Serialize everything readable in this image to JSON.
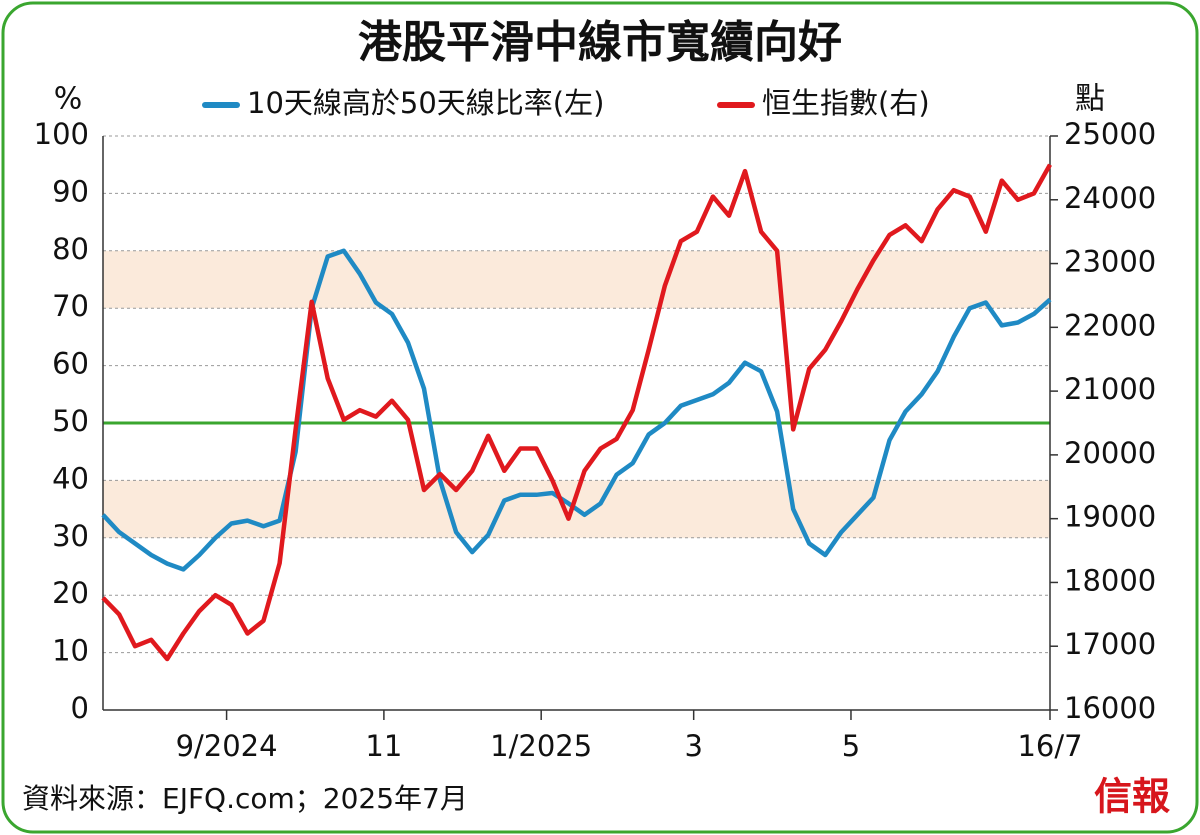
{
  "chart_data": {
    "type": "line",
    "title": "港股平滑中線市寬續向好",
    "y_label": "%",
    "y2_label": "點",
    "source": "資料來源：EJFQ.com；2025年7月",
    "logo": "信報",
    "x": [
      0,
      1,
      2,
      3,
      4,
      5,
      6,
      7,
      8,
      9,
      10,
      11,
      12,
      13,
      14,
      15,
      16,
      17,
      18,
      19,
      20,
      21,
      22,
      23,
      24,
      25,
      26,
      27,
      28,
      29,
      30,
      31,
      32,
      33,
      34,
      35,
      36,
      37,
      38,
      39,
      40,
      41,
      42,
      43,
      44,
      45,
      46,
      47,
      48,
      49,
      50,
      51,
      52,
      53,
      54,
      55,
      56,
      57,
      58,
      59
    ],
    "xlim": [
      0,
      59
    ],
    "xticks": [
      {
        "value": 7.7,
        "label": "9/2024"
      },
      {
        "value": 17.5,
        "label": "11"
      },
      {
        "value": 27.3,
        "label": "1/2025"
      },
      {
        "value": 36.8,
        "label": "3"
      },
      {
        "value": 46.6,
        "label": "5"
      },
      {
        "value": 59,
        "label": "16/7"
      }
    ],
    "ylim": [
      0,
      100
    ],
    "yticks": [
      0,
      10,
      20,
      30,
      40,
      50,
      60,
      70,
      80,
      90,
      100
    ],
    "y2lim": [
      16000,
      25000
    ],
    "y2ticks": [
      16000,
      17000,
      18000,
      19000,
      20000,
      21000,
      22000,
      23000,
      24000,
      25000
    ],
    "grid": true,
    "shaded_ranges": [
      [
        30,
        40
      ],
      [
        70,
        80
      ]
    ],
    "shade_color": "#fbeadb",
    "reference_line": 50,
    "reference_color": "#3aa62f",
    "series": [
      {
        "name": "10天線高於50天線比率(左)",
        "color": "#1f8ac4",
        "axis": "y",
        "values": [
          34,
          31,
          29,
          27,
          25.5,
          24.5,
          27,
          30,
          32.5,
          33,
          32,
          33,
          45,
          70,
          79,
          80,
          76,
          71,
          69,
          64,
          56,
          40,
          31,
          27.5,
          30.5,
          36.5,
          37.5,
          37.5,
          37.8,
          36,
          34,
          36,
          41,
          43,
          48,
          50,
          53,
          54,
          55,
          57,
          60.5,
          59,
          52,
          35,
          29,
          27,
          31,
          34,
          37,
          47,
          52,
          55,
          59,
          65,
          70,
          71,
          67,
          67.5,
          69,
          71.5
        ]
      },
      {
        "name": "恒生指數(右)",
        "color": "#e0191e",
        "axis": "y2",
        "values": [
          17760,
          17500,
          17000,
          17100,
          16800,
          17200,
          17550,
          17800,
          17650,
          17200,
          17400,
          18300,
          20400,
          22400,
          21200,
          20550,
          20700,
          20600,
          20850,
          20550,
          19450,
          19700,
          19450,
          19750,
          20300,
          19750,
          20100,
          20100,
          19600,
          19000,
          19750,
          20100,
          20250,
          20700,
          21650,
          22650,
          23350,
          23500,
          24050,
          23750,
          24450,
          23500,
          23200,
          20400,
          21350,
          21650,
          22100,
          22600,
          23050,
          23450,
          23600,
          23350,
          23850,
          24150,
          24050,
          23500,
          24300,
          24000,
          24100,
          24550
        ]
      }
    ]
  }
}
